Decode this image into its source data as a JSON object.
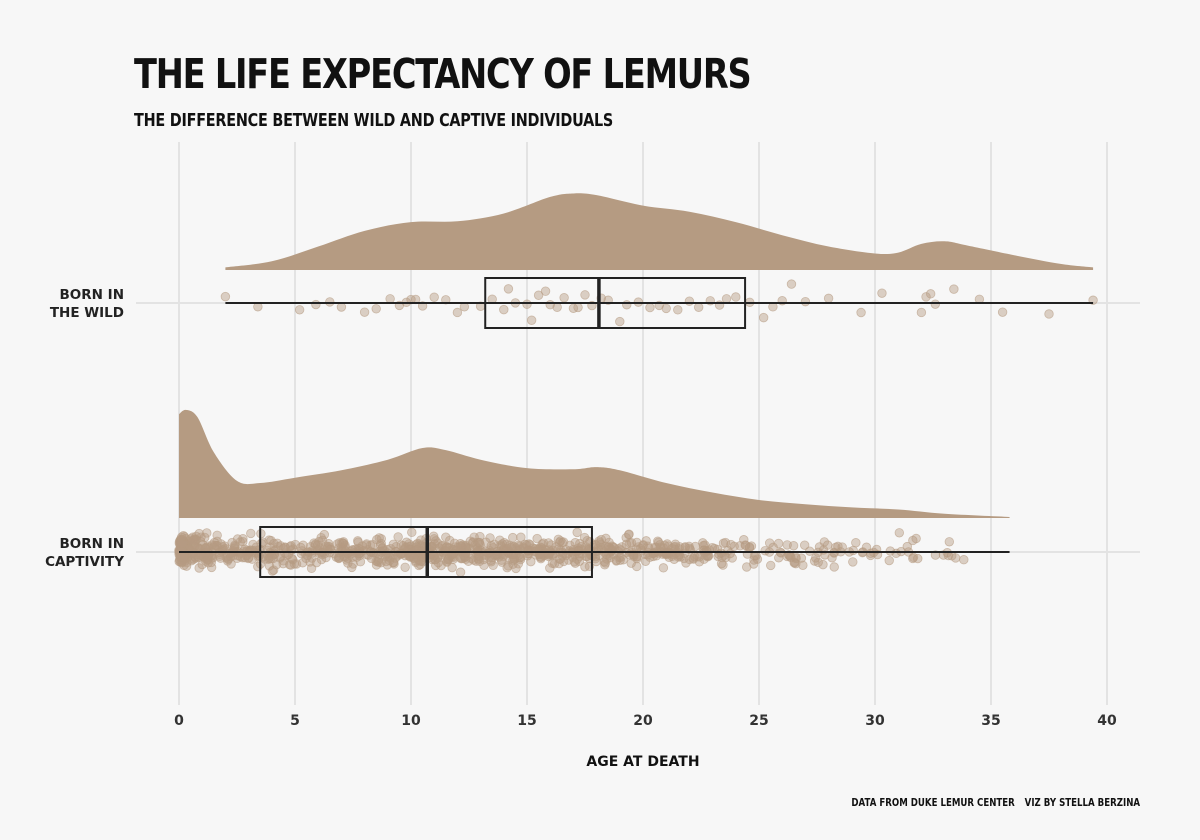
{
  "chart_data": {
    "type": "raincloud",
    "title": "THE LIFE EXPECTANCY OF LEMURS",
    "subtitle": "THE DIFFERENCE BETWEEN WILD AND CAPTIVE INDIVIDUALS",
    "xlabel": "AGE AT DEATH",
    "xlim": [
      0,
      40
    ],
    "xticks": [
      0,
      5,
      10,
      15,
      20,
      25,
      30,
      35,
      40
    ],
    "grid": true,
    "color": "#b59b82",
    "groups": [
      {
        "label_lines": [
          "BORN IN",
          "THE WILD"
        ],
        "min": 2.0,
        "q1": 13.2,
        "median": 18.1,
        "q3": 24.4,
        "max": 39.4,
        "density": [
          [
            2,
            0.03
          ],
          [
            4,
            0.1
          ],
          [
            6,
            0.27
          ],
          [
            8,
            0.45
          ],
          [
            10,
            0.55
          ],
          [
            12,
            0.56
          ],
          [
            14,
            0.65
          ],
          [
            16,
            0.84
          ],
          [
            17,
            0.88
          ],
          [
            18,
            0.86
          ],
          [
            20,
            0.74
          ],
          [
            22,
            0.67
          ],
          [
            24,
            0.55
          ],
          [
            26,
            0.4
          ],
          [
            28,
            0.27
          ],
          [
            30,
            0.19
          ],
          [
            31,
            0.2
          ],
          [
            32,
            0.3
          ],
          [
            33,
            0.33
          ],
          [
            34,
            0.28
          ],
          [
            36,
            0.17
          ],
          [
            38,
            0.07
          ],
          [
            39.4,
            0.03
          ]
        ],
        "points": [
          2,
          3.4,
          5.2,
          5.9,
          6.5,
          7,
          8,
          8.5,
          9.1,
          9.5,
          9.8,
          10,
          10.2,
          10.5,
          11,
          11.5,
          12,
          12.3,
          13,
          13.5,
          14,
          14.2,
          14.5,
          15,
          15.2,
          15.5,
          15.8,
          16,
          16.3,
          16.6,
          17,
          17.2,
          17.5,
          17.8,
          18.2,
          18.5,
          19,
          19.3,
          19.8,
          20.3,
          20.7,
          21,
          21.5,
          22,
          22.4,
          22.9,
          23.3,
          23.6,
          24,
          24.6,
          25.2,
          25.6,
          26,
          26.4,
          27,
          28,
          29.4,
          30.3,
          32,
          32.2,
          32.4,
          32.6,
          33.4,
          34.5,
          35.5,
          37.5,
          39.4
        ]
      },
      {
        "label_lines": [
          "BORN IN",
          "CAPTIVITY"
        ],
        "min": 0.0,
        "q1": 3.5,
        "median": 10.7,
        "q3": 17.8,
        "max": 35.8,
        "density": [
          [
            0,
            0.98
          ],
          [
            0.3,
            1.02
          ],
          [
            0.8,
            0.95
          ],
          [
            1.5,
            0.62
          ],
          [
            2.5,
            0.35
          ],
          [
            3.5,
            0.33
          ],
          [
            5,
            0.38
          ],
          [
            7,
            0.45
          ],
          [
            9,
            0.55
          ],
          [
            10.5,
            0.66
          ],
          [
            11.5,
            0.64
          ],
          [
            13,
            0.55
          ],
          [
            15,
            0.47
          ],
          [
            17,
            0.46
          ],
          [
            18,
            0.48
          ],
          [
            19,
            0.45
          ],
          [
            21,
            0.33
          ],
          [
            23,
            0.24
          ],
          [
            25,
            0.17
          ],
          [
            27,
            0.13
          ],
          [
            29,
            0.1
          ],
          [
            31,
            0.08
          ],
          [
            33,
            0.04
          ],
          [
            35.8,
            0.01
          ]
        ],
        "points_summary": "dense cluster from 0 to about 35 years"
      }
    ]
  },
  "caption": {
    "source": "DATA FROM DUKE LEMUR CENTER",
    "credit": "VIZ BY STELLA BERZINA"
  }
}
